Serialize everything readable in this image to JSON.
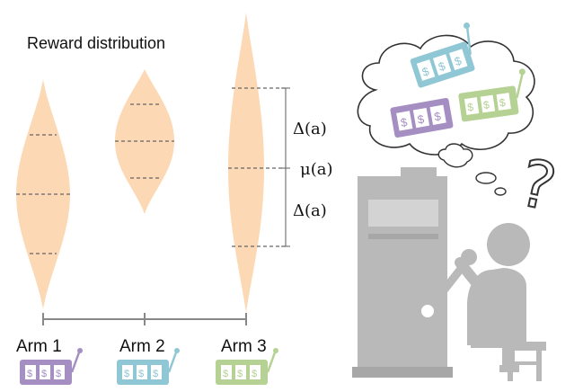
{
  "title": "Reward distribution",
  "arms": [
    {
      "label": "Arm 1",
      "color": "#a58fc2",
      "glyph": "$$$"
    },
    {
      "label": "Arm 2",
      "color": "#8fc7d4",
      "glyph": "$$$"
    },
    {
      "label": "Arm 3",
      "color": "#b5d193",
      "glyph": "$$$"
    }
  ],
  "annotations": {
    "delta_upper": "Δ(a)",
    "mu": "μ(a)",
    "delta_lower": "Δ(a)"
  },
  "thought_symbol": "?",
  "colors": {
    "distribution_fill": "#fcd8b4",
    "dashed_line": "#666666",
    "axis": "#777777",
    "person_gray": "#b9b9b9",
    "machine_gray": "#b9b9b9"
  }
}
